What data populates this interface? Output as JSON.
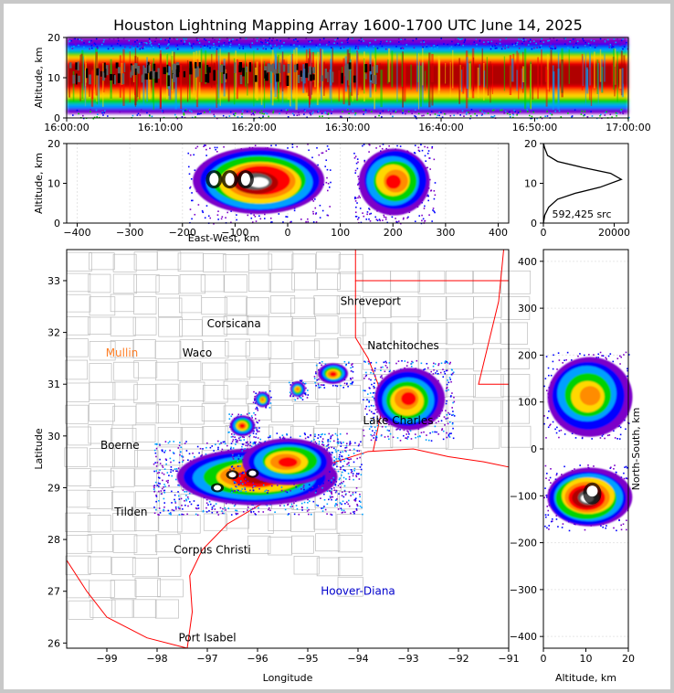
{
  "title": "Houston Lightning Mapping Array 1600-1700 UTC June 14, 2025",
  "colors": {
    "scale": [
      "#7b00c8",
      "#0000ff",
      "#00a0ff",
      "#00d200",
      "#ffd700",
      "#ff8c00",
      "#ff0000",
      "#b00000",
      "#606060",
      "#ffffff"
    ],
    "city_text": "#000000",
    "city_orange": "#ff7f27",
    "city_blue": "#0000cc",
    "state_border": "#ff0000",
    "county_lines": "#bdbdbd"
  },
  "chart_data": [
    {
      "id": "time-altitude",
      "type": "heatmap",
      "ylabel": "Altitude, km",
      "xlabel": "",
      "xlim": [
        "16:00:00",
        "17:00:00"
      ],
      "xticks": [
        "16:00:00",
        "16:10:00",
        "16:20:00",
        "16:30:00",
        "16:40:00",
        "16:50:00",
        "17:00:00"
      ],
      "ylim": [
        0,
        20
      ],
      "yticks": [
        "0",
        "10",
        "20"
      ],
      "density_core_altitude_km": [
        8,
        13
      ]
    },
    {
      "id": "eastwest-altitude",
      "type": "heatmap",
      "ylabel": "Altitude, km",
      "xlabel": "East-West, km",
      "xlim": [
        -420,
        420
      ],
      "xticks": [
        "-400",
        "-300",
        "-200",
        "-100",
        "0",
        "100",
        "200",
        "300",
        "400"
      ],
      "ylim": [
        0,
        20
      ],
      "yticks": [
        "0",
        "10",
        "20"
      ],
      "clusters_km": [
        [
          -180,
          70
        ],
        [
          135,
          270
        ]
      ]
    },
    {
      "id": "altitude-histogram",
      "type": "line",
      "xlim": [
        0,
        24000
      ],
      "xticks": [
        "0",
        "20000"
      ],
      "ylim": [
        0,
        20
      ],
      "yticks": [
        "0",
        "10",
        "20"
      ],
      "annotation": "592,425 src",
      "x": [
        0,
        400,
        1500,
        4000,
        9000,
        16000,
        22000,
        19000,
        11000,
        4000,
        1200,
        300,
        50
      ],
      "y": [
        0,
        2,
        4,
        6,
        7.5,
        9,
        11,
        12.5,
        14,
        15.5,
        17,
        19,
        20
      ]
    },
    {
      "id": "plan-view",
      "type": "scatter",
      "xlabel": "Longitude",
      "ylabel": "Latitude",
      "xlim": [
        -99.8,
        -91
      ],
      "xticks": [
        "−99",
        "−98",
        "−97",
        "−96",
        "−95",
        "−94",
        "−93",
        "−92",
        "−91"
      ],
      "ylim": [
        25.9,
        33.6
      ],
      "yticks": [
        "26",
        "27",
        "28",
        "29",
        "30",
        "31",
        "32",
        "33"
      ],
      "cities": [
        {
          "name": "Shreveport",
          "lon": -93.75,
          "lat": 32.6,
          "color": "#000000"
        },
        {
          "name": "Corsicana",
          "lon": -96.47,
          "lat": 32.17,
          "color": "#000000"
        },
        {
          "name": "Mullin",
          "lon": -98.7,
          "lat": 31.6,
          "color": "#ff7f27"
        },
        {
          "name": "Waco",
          "lon": -97.2,
          "lat": 31.6,
          "color": "#000000"
        },
        {
          "name": "Natchitoches",
          "lon": -93.1,
          "lat": 31.75,
          "color": "#000000"
        },
        {
          "name": "Lake Charles",
          "lon": -93.2,
          "lat": 30.3,
          "color": "#000000"
        },
        {
          "name": "Boerne",
          "lon": -98.74,
          "lat": 29.82,
          "color": "#000000"
        },
        {
          "name": "Tilden",
          "lon": -98.52,
          "lat": 28.53,
          "color": "#000000"
        },
        {
          "name": "Corpus Christi",
          "lon": -96.9,
          "lat": 27.8,
          "color": "#000000"
        },
        {
          "name": "Hoover-Diana",
          "lon": -94.0,
          "lat": 27.0,
          "color": "#0000cc"
        },
        {
          "name": "Port Isabel",
          "lon": -97.0,
          "lat": 26.1,
          "color": "#000000"
        }
      ],
      "storm_clusters": [
        {
          "lon": -96.0,
          "lat": 29.2,
          "extent_deg": [
            1.6,
            0.55
          ],
          "peak": "white"
        },
        {
          "lon": -95.4,
          "lat": 29.5,
          "extent_deg": [
            0.9,
            0.45
          ],
          "peak": "red"
        },
        {
          "lon": -96.3,
          "lat": 30.2,
          "extent_deg": [
            0.25,
            0.2
          ],
          "peak": "red"
        },
        {
          "lon": -93.0,
          "lat": 30.7,
          "extent_deg": [
            0.7,
            0.6
          ],
          "peak": "red"
        },
        {
          "lon": -94.5,
          "lat": 31.2,
          "extent_deg": [
            0.3,
            0.2
          ],
          "peak": "red"
        },
        {
          "lon": -95.2,
          "lat": 30.9,
          "extent_deg": [
            0.15,
            0.15
          ],
          "peak": "orange"
        },
        {
          "lon": -95.9,
          "lat": 30.7,
          "extent_deg": [
            0.15,
            0.15
          ],
          "peak": "orange"
        }
      ]
    },
    {
      "id": "altitude-northsouth",
      "type": "heatmap",
      "xlabel": "Altitude, km",
      "ylabel": "North-South, km",
      "xlim": [
        0,
        20
      ],
      "xticks": [
        "0",
        "10",
        "20"
      ],
      "ylim": [
        -425,
        425
      ],
      "yticks": [
        "−400",
        "−300",
        "−200",
        "−100",
        "0",
        "100",
        "200",
        "300",
        "400"
      ],
      "clusters_km": [
        [
          -165,
          -40
        ],
        [
          30,
          200
        ]
      ]
    }
  ]
}
